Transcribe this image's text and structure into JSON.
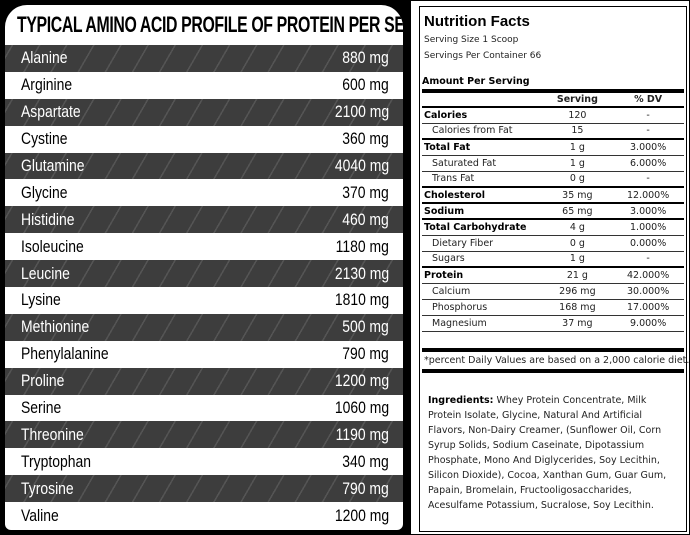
{
  "amino": {
    "title": "TYPICAL AMINO ACID PROFILE OF PROTEIN PER SERVING",
    "rows": [
      [
        "Alanine",
        "880 mg"
      ],
      [
        "Arginine",
        "600 mg"
      ],
      [
        "Aspartate",
        "2100 mg"
      ],
      [
        "Cystine",
        "360 mg"
      ],
      [
        "Glutamine",
        "4040 mg"
      ],
      [
        "Glycine",
        "370 mg"
      ],
      [
        "Histidine",
        "460 mg"
      ],
      [
        "Isoleucine",
        "1180 mg"
      ],
      [
        "Leucine",
        "2130 mg"
      ],
      [
        "Lysine",
        "1810 mg"
      ],
      [
        "Methionine",
        "500 mg"
      ],
      [
        "Phenylalanine",
        "790 mg"
      ],
      [
        "Proline",
        "1200 mg"
      ],
      [
        "Serine",
        "1060 mg"
      ],
      [
        "Threonine",
        "1190 mg"
      ],
      [
        "Tryptophan",
        "340 mg"
      ],
      [
        "Tyrosine",
        "790 mg"
      ],
      [
        "Valine",
        "1200 mg"
      ]
    ]
  },
  "nutrition": {
    "title": "Nutrition Facts",
    "serving_size": "Serving Size 1 Scoop",
    "servings_per_container": "Servings Per Container 66",
    "amount_per_serving": "Amount Per Serving",
    "headers": [
      "",
      "Serving",
      "% DV"
    ],
    "rows": [
      [
        "Calories",
        "120",
        "-",
        "b"
      ],
      [
        "Calories from Fat",
        "15",
        "-",
        "i"
      ],
      [
        "Total Fat",
        "1 g",
        "3.000%",
        "b"
      ],
      [
        "Saturated Fat",
        "1 g",
        "6.000%",
        "i"
      ],
      [
        "Trans Fat",
        "0 g",
        "-",
        "i"
      ],
      [
        "Cholesterol",
        "35 mg",
        "12.000%",
        "b"
      ],
      [
        "Sodium",
        "65 mg",
        "3.000%",
        "b"
      ],
      [
        "Total Carbohydrate",
        "4 g",
        "1.000%",
        "b"
      ],
      [
        "Dietary Fiber",
        "0 g",
        "0.000%",
        "i"
      ],
      [
        "Sugars",
        "1 g",
        "-",
        "i"
      ],
      [
        "Protein",
        "21 g",
        "42.000%",
        "b"
      ],
      [
        "Calcium",
        "296 mg",
        "30.000%",
        "i"
      ],
      [
        "Phosphorus",
        "168 mg",
        "17.000%",
        "i"
      ],
      [
        "Magnesium",
        "37 mg",
        "9.000%",
        "i"
      ]
    ],
    "footnote": "*percent Daily Values are based on a 2,000 calorie diet.",
    "ingredients_label": "Ingredients:",
    "ingredients": " Whey Protein Concentrate, Milk Protein Isolate, Glycine, Natural And Artificial Flavors, Non-Dairy Creamer, (Sunflower Oil, Corn Syrup Solids, Sodium Caseinate, Dipotassium Phosphate, Mono And Diglycerides, Soy Lecithin, Silicon Dioxide), Cocoa, Xanthan Gum, Guar Gum, Papain, Bromelain, Fructooligosaccharides, Acesulfame Potassium, Sucralose, Soy Lecithin."
  }
}
